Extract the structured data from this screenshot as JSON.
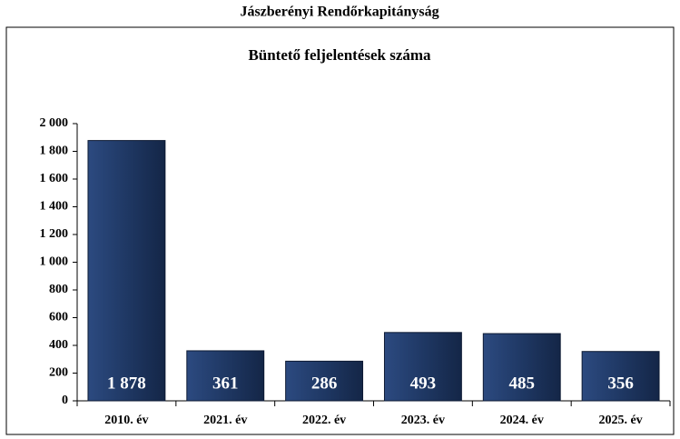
{
  "chart_data": {
    "type": "bar",
    "title": "Jászberényi Rendőrkapitányság",
    "subtitle": "Büntető feljelentések száma",
    "categories": [
      "2010. év",
      "2021. év",
      "2022. év",
      "2023. év",
      "2024. év",
      "2025. év"
    ],
    "values": [
      1878,
      361,
      286,
      493,
      485,
      356
    ],
    "value_labels": [
      "1 878",
      "361",
      "286",
      "493",
      "485",
      "356"
    ],
    "color": "#1f3864",
    "ylim": [
      0,
      2000
    ],
    "yticks": [
      0,
      200,
      400,
      600,
      800,
      {
        "value": 1000,
        "label": "1 000"
      },
      {
        "value": 1200,
        "label": "1 200"
      },
      {
        "value": 1400,
        "label": "1 400"
      },
      {
        "value": 1600,
        "label": "1 600"
      },
      {
        "value": 1800,
        "label": "1 800"
      },
      {
        "value": 2000,
        "label": "2 000"
      }
    ]
  }
}
